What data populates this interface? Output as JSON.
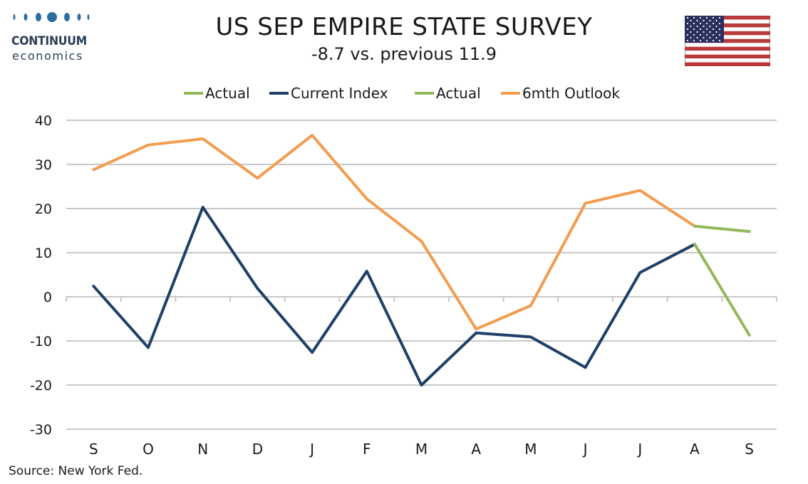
{
  "brand": {
    "name": "CONTINUUM",
    "tagline": "economics",
    "dot_color": "#2c6e9e"
  },
  "header": {
    "title": "US SEP EMPIRE STATE SURVEY",
    "subtitle": "-8.7 vs. previous 11.9"
  },
  "flag_icon": "us-flag-icon",
  "source": "Source: New York Fed.",
  "chart_data": {
    "type": "line",
    "title": "US SEP EMPIRE STATE SURVEY",
    "subtitle": "-8.7 vs. previous 11.9",
    "categories": [
      "S",
      "O",
      "N",
      "D",
      "J",
      "F",
      "M",
      "A",
      "M",
      "J",
      "J",
      "A",
      "S"
    ],
    "ylim": [
      -30,
      40
    ],
    "yticks": [
      40,
      30,
      20,
      10,
      0,
      -10,
      -20,
      -30
    ],
    "grid": true,
    "legend_position": "top",
    "legend": [
      "Actual",
      "Current Index",
      "Actual",
      "6mth Outlook"
    ],
    "series": [
      {
        "name": "Actual",
        "color": "#92b85a",
        "values": [
          null,
          null,
          null,
          null,
          null,
          null,
          null,
          null,
          null,
          null,
          null,
          11.9,
          -8.7
        ]
      },
      {
        "name": "Current Index",
        "color": "#1f4068",
        "values": [
          2.4,
          -11.5,
          20.3,
          1.9,
          -12.6,
          5.8,
          -20.0,
          -8.2,
          -9.1,
          -16.0,
          5.5,
          11.9,
          null
        ]
      },
      {
        "name": "Actual",
        "color": "#92b85a",
        "values": [
          null,
          null,
          null,
          null,
          null,
          null,
          null,
          null,
          null,
          null,
          null,
          16.0,
          14.8
        ]
      },
      {
        "name": "6mth Outlook",
        "color": "#f39c4f",
        "values": [
          28.8,
          34.4,
          35.8,
          26.9,
          36.6,
          22.2,
          12.6,
          -7.3,
          -2.0,
          21.2,
          24.1,
          16.0,
          null
        ]
      }
    ]
  }
}
